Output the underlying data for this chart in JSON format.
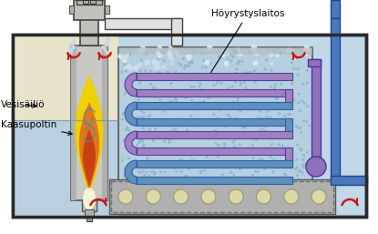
{
  "label_vesisailio": "Vesisäiliö",
  "label_kaasupoltin": "Kaasupoltin",
  "label_hoyrystyslaitos": "Höyrystyslaitos",
  "bg_color": "#ffffff",
  "tank_outline": "#2a2a2a",
  "water_light": "#c5dce8",
  "water_mid": "#b0cedd",
  "water_dark": "#9abece",
  "tank_left_bg": "#e8e4cc",
  "flame_yellow": "#f0d000",
  "flame_orange": "#e07818",
  "flame_red": "#c84010",
  "flame_white": "#fffce0",
  "combustor_gray": "#c8c8c4",
  "combustor_dark": "#909090",
  "stack_gray": "#c0c0bc",
  "pipe_purple": "#9070b8",
  "pipe_blue": "#4a78b8",
  "coil_purple": "#a080c0",
  "coil_blue": "#6090c0",
  "arrow_red": "#cc1818",
  "base_gray": "#b0b0b0",
  "bubble_tan": "#dcd8a8",
  "dashed_color": "#707070",
  "spray_color": "#c0d4e0",
  "smoke_gray": "#d0d0cc"
}
